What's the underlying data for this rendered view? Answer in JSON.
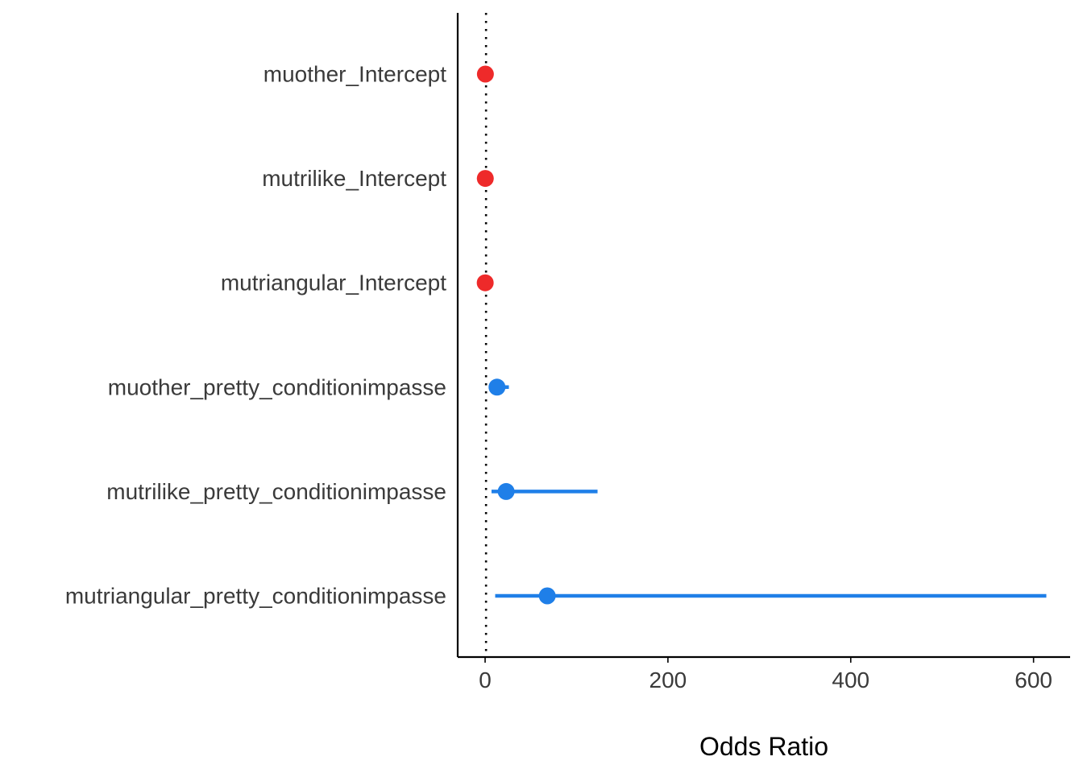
{
  "chart_data": {
    "type": "forest",
    "xlabel": "Odds Ratio",
    "ylabel": "",
    "xlim": [
      -30,
      640
    ],
    "xticks": [
      0,
      200,
      400,
      600
    ],
    "reference_line": 1,
    "grid": false,
    "legend": "none",
    "rows": [
      {
        "label": "muother_Intercept",
        "estimate": 0.3,
        "lower": 0.1,
        "upper": 0.6,
        "color": "#ee2a2a"
      },
      {
        "label": "mutrilike_Intercept",
        "estimate": 0.2,
        "lower": 0.1,
        "upper": 0.5,
        "color": "#ee2a2a"
      },
      {
        "label": "mutriangular_Intercept",
        "estimate": 0.1,
        "lower": 0.05,
        "upper": 0.3,
        "color": "#ee2a2a"
      },
      {
        "label": "muother_pretty_conditionimpasse",
        "estimate": 13,
        "lower": 4,
        "upper": 26,
        "color": "#1f7fe8"
      },
      {
        "label": "mutrilike_pretty_conditionimpasse",
        "estimate": 23,
        "lower": 7,
        "upper": 123,
        "color": "#1f7fe8"
      },
      {
        "label": "mutriangular_pretty_conditionimpasse",
        "estimate": 68,
        "lower": 11,
        "upper": 614,
        "color": "#1f7fe8"
      }
    ]
  }
}
